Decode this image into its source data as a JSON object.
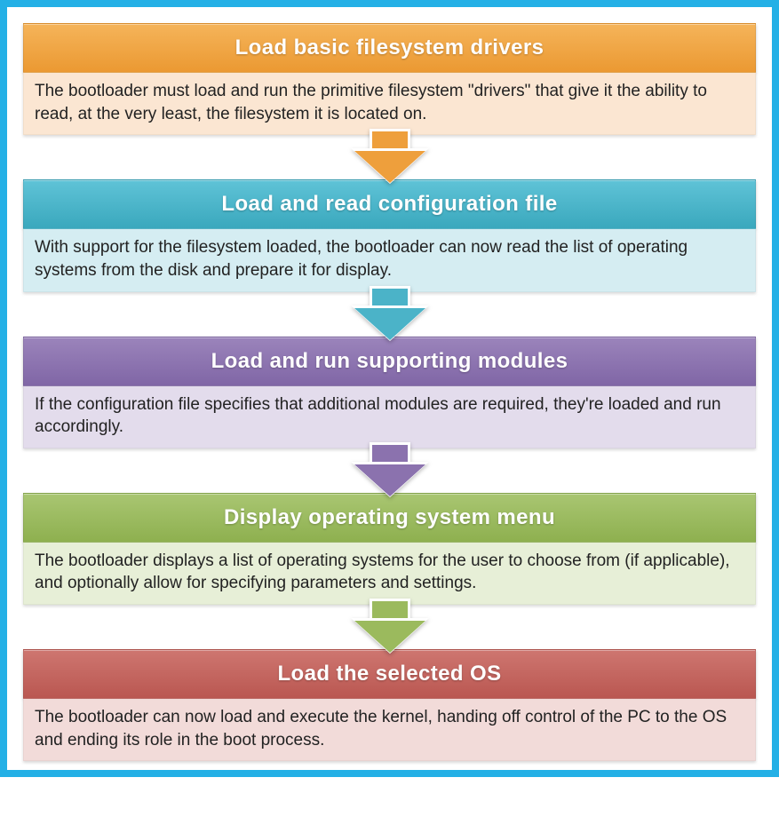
{
  "frame_color": "#24b0e6",
  "background": "#ffffff",
  "title_font_size": 24,
  "desc_font_size": 19,
  "steps": [
    {
      "title": "Load basic filesystem drivers",
      "desc": "The bootloader must load and run the primitive filesystem \"drivers\" that give it the ability to read, at the very least, the filesystem it is located on.",
      "title_bg_top": "#f5b45a",
      "title_bg_bottom": "#eb9932",
      "desc_bg": "#fbe6d2",
      "arrow_color": "#ee9f3c"
    },
    {
      "title": "Load and read configuration file",
      "desc": "With support for the filesystem loaded, the bootloader can now read the list of operating systems from the disk and prepare it for display.",
      "title_bg_top": "#5fc3d7",
      "title_bg_bottom": "#3aa8bd",
      "desc_bg": "#d5edf2",
      "arrow_color": "#4bb3c8"
    },
    {
      "title": "Load and run supporting modules",
      "desc": "If the configuration file specifies that additional modules are required, they're loaded and run accordingly.",
      "title_bg_top": "#9b84bb",
      "title_bg_bottom": "#8066a6",
      "desc_bg": "#e3dcec",
      "arrow_color": "#8b72ae"
    },
    {
      "title": "Display operating system menu",
      "desc": "The bootloader displays a list of operating systems for the user to choose from (if applicable), and optionally allow for specifying parameters and settings.",
      "title_bg_top": "#a9c672",
      "title_bg_bottom": "#8eb04f",
      "desc_bg": "#e7efd7",
      "arrow_color": "#9bba5d"
    },
    {
      "title": "Load the selected OS",
      "desc": "The bootloader can now load and execute the kernel, handing off control of the PC to the OS and ending its role in the boot process.",
      "title_bg_top": "#ce7670",
      "title_bg_bottom": "#ba5751",
      "desc_bg": "#f2dbd9",
      "arrow_color": null
    }
  ]
}
